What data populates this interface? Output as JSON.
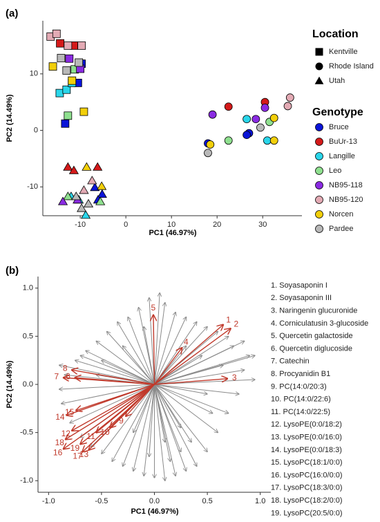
{
  "chart_data": [
    {
      "type": "scatter",
      "panel_label": "(a)",
      "xlabel": "PC1 (46.97%)",
      "ylabel": "PC2 (14.49%)",
      "xlim": [
        -18.2,
        38.6
      ],
      "ylim": [
        -15.1,
        19.4
      ],
      "xticks": [
        -10,
        0,
        10,
        20,
        30
      ],
      "yticks": [
        -10,
        0,
        10
      ],
      "location_title": "Location",
      "locations": [
        {
          "name": "Kentville",
          "marker": "square"
        },
        {
          "name": "Rhode Island",
          "marker": "circle"
        },
        {
          "name": "Utah",
          "marker": "triangle"
        }
      ],
      "genotype_title": "Genotype",
      "series": [
        {
          "name": "Bruce",
          "color": "#0a14d8",
          "x": [
            18,
            27,
            26.5,
            -13.3,
            -9.7,
            -10.5,
            -6.8,
            -5.2,
            -6.1
          ],
          "y": [
            -2.3,
            -0.5,
            -0.8,
            1.2,
            11.8,
            8.4,
            -10.1,
            -11.3,
            -12.3
          ],
          "location": [
            "Rhode Island",
            "Rhode Island",
            "Rhode Island",
            "Kentville",
            "Kentville",
            "Kentville",
            "Utah",
            "Utah",
            "Utah"
          ]
        },
        {
          "name": "BuUr-13",
          "color": "#d41a1a",
          "x": [
            22.5,
            30.5,
            -14.4,
            -11.4,
            -12.7,
            -11.4,
            -6.2
          ],
          "y": [
            4.2,
            5.0,
            15.4,
            15,
            -6.5,
            -7.1,
            -6.5
          ],
          "location": [
            "Rhode Island",
            "Rhode Island",
            "Kentville",
            "Kentville",
            "Utah",
            "Utah",
            "Utah"
          ]
        },
        {
          "name": "Langille",
          "color": "#2ad6ea",
          "x": [
            26.5,
            31,
            -14.5,
            -13,
            -11.8,
            -12,
            -8.8,
            -10.3
          ],
          "y": [
            2.0,
            -1.8,
            6.6,
            7.2,
            8.4,
            -11.7,
            -15,
            -12.3
          ],
          "location": [
            "Rhode Island",
            "Rhode Island",
            "Kentville",
            "Kentville",
            "Kentville",
            "Utah",
            "Utah",
            "Utah"
          ]
        },
        {
          "name": "Leo",
          "color": "#8fe08f",
          "x": [
            22.5,
            31.5,
            -12.7,
            -11.2,
            -12.7,
            -5.6
          ],
          "y": [
            -1.8,
            1.5,
            2.6,
            10.8,
            -11.7,
            -12.6
          ],
          "location": [
            "Rhode Island",
            "Rhode Island",
            "Kentville",
            "Kentville",
            "Utah",
            "Utah"
          ]
        },
        {
          "name": "NB95-118",
          "color": "#8a2be2",
          "x": [
            19,
            28.5,
            30.5,
            -12.4,
            -10,
            -13.8,
            -10.6
          ],
          "y": [
            2.8,
            2.0,
            4.0,
            12.7,
            10.9,
            -12.6,
            -12.3
          ],
          "location": [
            "Rhode Island",
            "Rhode Island",
            "Rhode Island",
            "Kentville",
            "Kentville",
            "Utah",
            "Utah"
          ]
        },
        {
          "name": "NB95-120",
          "color": "#e3aab4",
          "x": [
            35.5,
            36,
            -16.5,
            -15.2,
            -9.7,
            -12.7,
            -7.4,
            -9.2
          ],
          "y": [
            4.3,
            5.8,
            16.6,
            17.1,
            15,
            15,
            -8.9,
            -10.6
          ],
          "location": [
            "Rhode Island",
            "Rhode Island",
            "Kentville",
            "Kentville",
            "Kentville",
            "Kentville",
            "Utah",
            "Utah"
          ]
        },
        {
          "name": "Norcen",
          "color": "#f2cf0a",
          "x": [
            18.5,
            32.5,
            32.5,
            -16,
            -11.8,
            -9.2,
            -8.6,
            -5.3
          ],
          "y": [
            -2.5,
            -1.8,
            2.2,
            11.3,
            8.8,
            3.3,
            -6.5,
            -9.9
          ],
          "location": [
            "Rhode Island",
            "Rhode Island",
            "Rhode Island",
            "Kentville",
            "Kentville",
            "Kentville",
            "Utah",
            "Utah"
          ]
        },
        {
          "name": "Pardee",
          "color": "#b8b8b8",
          "x": [
            18,
            29.5,
            -14.2,
            -13,
            -10.3,
            -10.9,
            -8.2,
            -9.7
          ],
          "y": [
            -4,
            0.5,
            12.8,
            10.6,
            12,
            -11.7,
            -13,
            -13.8
          ],
          "location": [
            "Rhode Island",
            "Rhode Island",
            "Kentville",
            "Kentville",
            "Kentville",
            "Utah",
            "Utah",
            "Utah"
          ]
        }
      ]
    },
    {
      "type": "biplot",
      "panel_label": "(b)",
      "xlabel": "PC1 (46.97%)",
      "ylabel": "PC2 (14.49%)",
      "xlim": [
        -1.1,
        1.1
      ],
      "ylim": [
        -1.12,
        1.12
      ],
      "xticks": [
        {
          "value": -1,
          "label": "-1.0"
        },
        -0.5,
        {
          "value": 0,
          "label": "0.0"
        },
        0.5,
        {
          "value": 1,
          "label": "1.0"
        }
      ],
      "yticks": [
        {
          "value": -1,
          "label": "-1.0"
        },
        -0.5,
        {
          "value": 0,
          "label": "0.0"
        },
        0.5,
        {
          "value": 1,
          "label": "1.0"
        }
      ],
      "loading_color": "#8a8a8a",
      "highlight_color": "#c0392b",
      "loadings": {
        "x": [
          0.9,
          0.85,
          0.95,
          0.8,
          0.7,
          0.6,
          0.5,
          0.4,
          0.3,
          0.2,
          0.1,
          0.0,
          -0.1,
          -0.2,
          -0.3,
          -0.4,
          0.15,
          0.25,
          -0.05,
          0.35,
          0.55,
          0.65,
          0.75,
          0.6,
          0.5,
          0.4,
          0.3,
          0.2,
          0.1,
          0.05,
          -0.05,
          -0.15,
          -0.25,
          -0.35,
          -0.45,
          -0.55,
          -0.65,
          -0.75,
          -0.85,
          -0.9,
          -0.88,
          -0.8,
          -0.7,
          -0.6,
          -0.5,
          -0.9,
          -0.7,
          -0.5,
          0.45,
          0.3,
          -0.3,
          0.85,
          0.5,
          -0.2,
          0.1,
          -0.55,
          0.25,
          -0.1,
          0.7,
          0.95
        ],
        "y": [
          0.3,
          0.15,
          0.05,
          -0.1,
          -0.3,
          -0.5,
          -0.7,
          -0.85,
          -0.9,
          -0.95,
          -1.0,
          -0.97,
          -0.95,
          -0.9,
          -0.85,
          -0.8,
          -0.8,
          -0.7,
          -0.75,
          -0.6,
          -0.3,
          0.2,
          0.4,
          0.55,
          0.6,
          0.65,
          0.7,
          0.75,
          0.85,
          0.95,
          0.9,
          0.8,
          0.7,
          0.65,
          0.55,
          0.45,
          0.35,
          0.25,
          0.1,
          -0.05,
          -0.2,
          -0.4,
          -0.55,
          -0.65,
          -0.72,
          0.2,
          0.3,
          0.25,
          0.3,
          0.4,
          0.4,
          0.45,
          -0.1,
          -0.5,
          -0.6,
          0.1,
          -0.45,
          0.6,
          0.5,
          0.3
        ]
      },
      "highlighted": {
        "labels": [
          "1",
          "2",
          "3",
          "4",
          "5",
          "6",
          "7",
          "8",
          "9",
          "10",
          "11",
          "12",
          "13",
          "14",
          "15",
          "16",
          "17",
          "18",
          "19"
        ],
        "x": [
          0.65,
          0.72,
          0.69,
          0.26,
          -0.01,
          -0.75,
          -0.86,
          -0.78,
          -0.27,
          -0.42,
          -0.55,
          -0.78,
          -0.62,
          -0.83,
          -0.74,
          -0.86,
          -0.68,
          -0.84,
          -0.7
        ],
        "y": [
          0.62,
          0.58,
          0.06,
          0.38,
          0.72,
          0.07,
          0.07,
          0.15,
          -0.33,
          -0.45,
          -0.5,
          -0.48,
          -0.68,
          -0.32,
          -0.27,
          -0.67,
          -0.7,
          -0.57,
          -0.62
        ]
      },
      "legend_entries": [
        "1. Soyasaponin I",
        "2. Soyasaponin III",
        "3. Naringenin glucuronide",
        "4. Corniculatusin 3-glucoside",
        "5. Quercetin galactoside",
        "6. Quercetin diglucoside",
        "7. Catechin",
        "8. Procyanidin B1",
        "9. PC(14:0/20:3)",
        "10. PC(14:0/22:6)",
        "11. PC(14:0/22:5)",
        "12. LysoPE(0:0/18:2)",
        "13. LysoPE(0:0/16:0)",
        "14. LysoPE(0:0/18:3)",
        "15. LysoPC(18:1/0:0)",
        "16. LysoPC(16:0/0:0)",
        "17. LysoPC(18:3/0:0)",
        "18. LysoPC(18:2/0:0)",
        "19. LysoPC(20:5/0:0)"
      ]
    }
  ]
}
